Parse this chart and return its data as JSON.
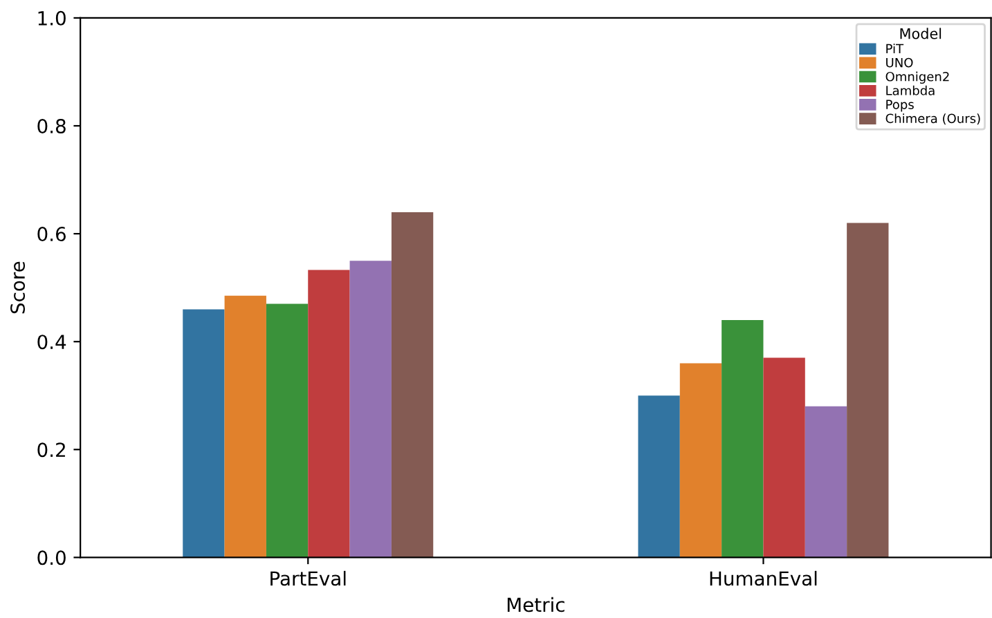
{
  "chart_data": {
    "type": "bar",
    "xlabel": "Metric",
    "ylabel": "Score",
    "legend_title": "Model",
    "categories": [
      "PartEval",
      "HumanEval"
    ],
    "series": [
      {
        "name": "PiT",
        "color": "#3274a1",
        "values": [
          0.46,
          0.3
        ]
      },
      {
        "name": "UNO",
        "color": "#e1812c",
        "values": [
          0.485,
          0.36
        ]
      },
      {
        "name": "Omnigen2",
        "color": "#3a923a",
        "values": [
          0.47,
          0.44
        ]
      },
      {
        "name": "Lambda",
        "color": "#c03d3e",
        "values": [
          0.533,
          0.37
        ]
      },
      {
        "name": "Pops",
        "color": "#9372b2",
        "values": [
          0.55,
          0.28
        ]
      },
      {
        "name": "Chimera (Ours)",
        "color": "#845b53",
        "values": [
          0.64,
          0.62
        ]
      }
    ],
    "ylim": [
      0,
      1.0
    ],
    "yticks": [
      {
        "value": 0,
        "label": "0.0"
      },
      0.2,
      0.4,
      0.6,
      0.8,
      {
        "value": 1,
        "label": "1.0"
      }
    ],
    "grid": false,
    "legend": "top right"
  }
}
